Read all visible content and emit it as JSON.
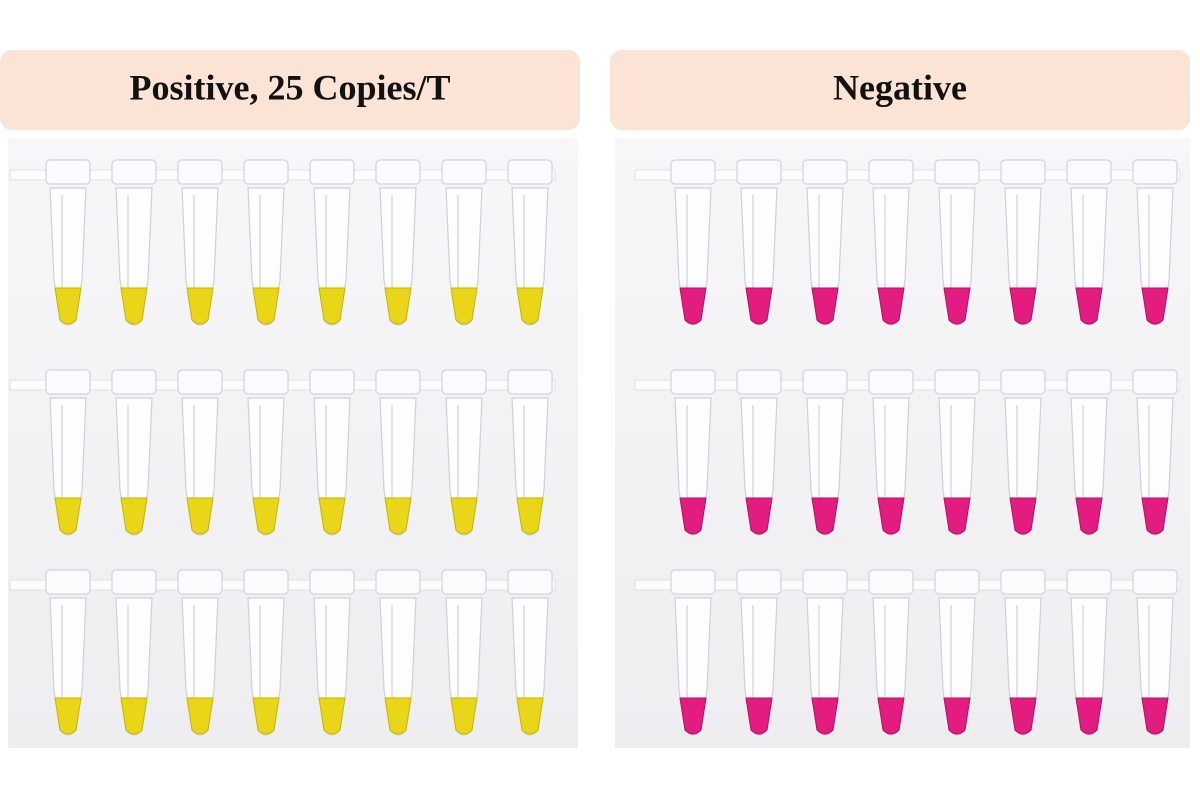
{
  "panels": [
    {
      "title": "Positive, 25 Copies/T"
    },
    {
      "title": "Negative"
    }
  ]
}
